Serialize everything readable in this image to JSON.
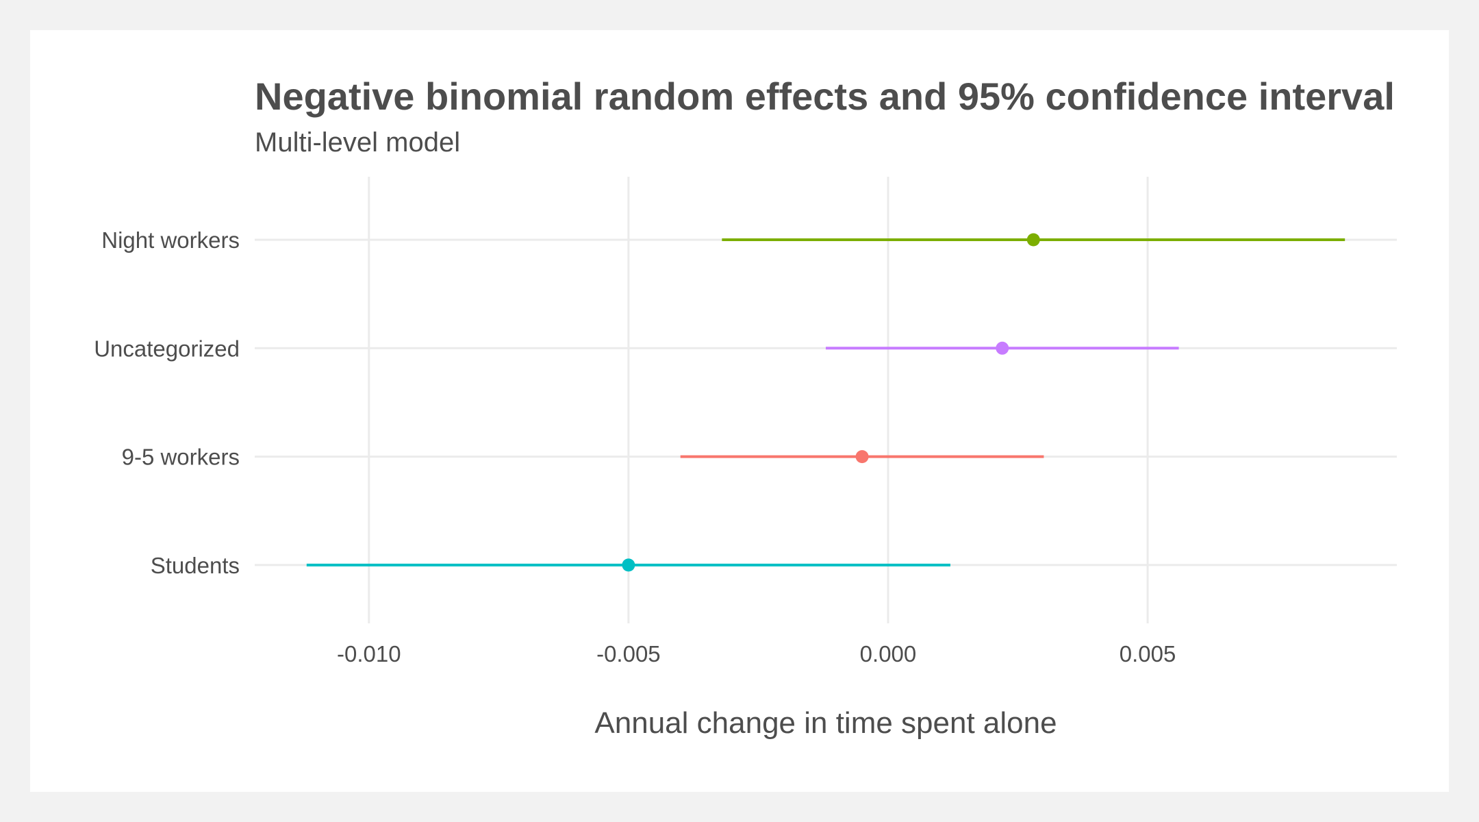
{
  "chart_data": {
    "type": "forest",
    "title": "Negative binomial random effects and 95% confidence interval",
    "subtitle": "Multi-level model",
    "xlabel": "Annual change in time spent alone",
    "ylabel": "",
    "xlim": [
      -0.0122,
      0.0098
    ],
    "x_ticks": [
      -0.01,
      -0.005,
      0.0,
      0.005
    ],
    "x_tick_labels": [
      "-0.010",
      "-0.005",
      "0.000",
      "0.005"
    ],
    "grid": true,
    "legend": "none",
    "categories": [
      "Night workers",
      "Uncategorized",
      "9-5 workers",
      "Students"
    ],
    "series": [
      {
        "category": "Night workers",
        "estimate": 0.0028,
        "lower": -0.0032,
        "upper": 0.0088,
        "color": "#7cae00"
      },
      {
        "category": "Uncategorized",
        "estimate": 0.0022,
        "lower": -0.0012,
        "upper": 0.0056,
        "color": "#c77cff"
      },
      {
        "category": "9-5 workers",
        "estimate": -0.0005,
        "lower": -0.004,
        "upper": 0.003,
        "color": "#f8766d"
      },
      {
        "category": "Students",
        "estimate": -0.005,
        "lower": -0.0112,
        "upper": 0.0012,
        "color": "#00bfc4"
      }
    ]
  }
}
